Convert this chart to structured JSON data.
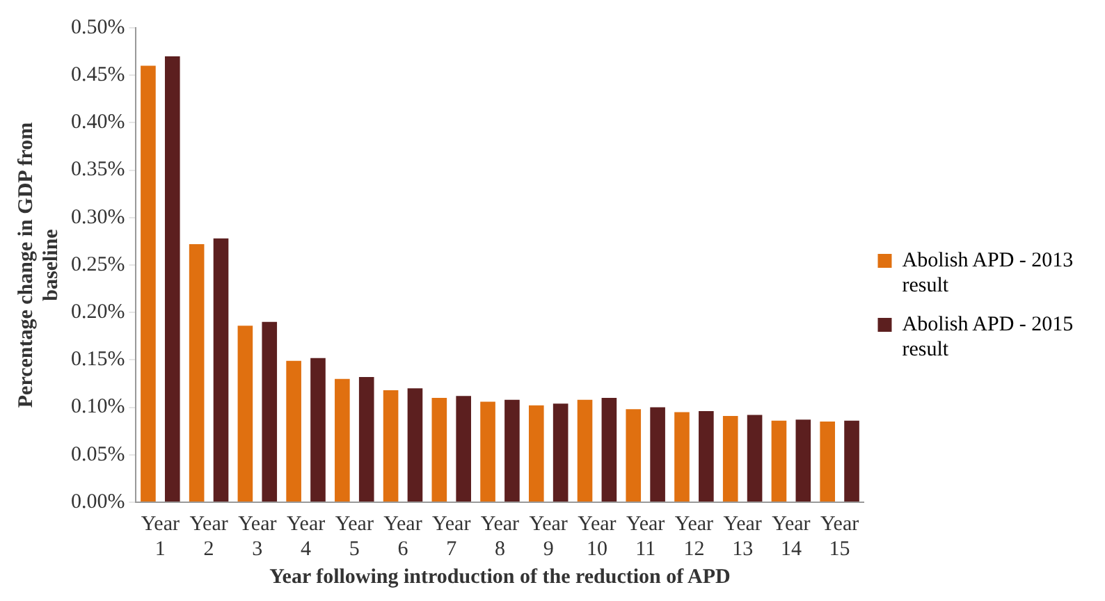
{
  "chart_data": {
    "type": "bar",
    "xlabel": "Year following introduction of the reduction of APD",
    "ylabel": "Percentage change in GDP from baseline",
    "categories": [
      "Year 1",
      "Year 2",
      "Year 3",
      "Year 4",
      "Year 5",
      "Year 6",
      "Year 7",
      "Year 8",
      "Year 9",
      "Year 10",
      "Year 11",
      "Year 12",
      "Year 13",
      "Year 14",
      "Year 15"
    ],
    "series": [
      {
        "name": "Abolish APD - 2013 result",
        "color": "#e07010",
        "values": [
          0.46,
          0.272,
          0.186,
          0.149,
          0.13,
          0.118,
          0.11,
          0.106,
          0.102,
          0.108,
          0.098,
          0.095,
          0.091,
          0.086,
          0.085
        ]
      },
      {
        "name": "Abolish APD - 2015 result",
        "color": "#5c1f1f",
        "values": [
          0.47,
          0.278,
          0.19,
          0.152,
          0.132,
          0.12,
          0.112,
          0.108,
          0.104,
          0.11,
          0.1,
          0.096,
          0.092,
          0.087,
          0.086
        ]
      }
    ],
    "ylim": [
      0,
      0.5
    ],
    "yticks": [
      {
        "value": 0,
        "label": "0.00%"
      },
      {
        "value": 0.05,
        "label": "0.05%"
      },
      {
        "value": 0.1,
        "label": "0.10%"
      },
      {
        "value": 0.15,
        "label": "0.15%"
      },
      {
        "value": 0.2,
        "label": "0.20%"
      },
      {
        "value": 0.25,
        "label": "0.25%"
      },
      {
        "value": 0.3,
        "label": "0.30%"
      },
      {
        "value": 0.35,
        "label": "0.35%"
      },
      {
        "value": 0.4,
        "label": "0.40%"
      },
      {
        "value": 0.45,
        "label": "0.45%"
      },
      {
        "value": 0.5,
        "label": "0.50%"
      }
    ],
    "grid": false,
    "legend": "right"
  }
}
